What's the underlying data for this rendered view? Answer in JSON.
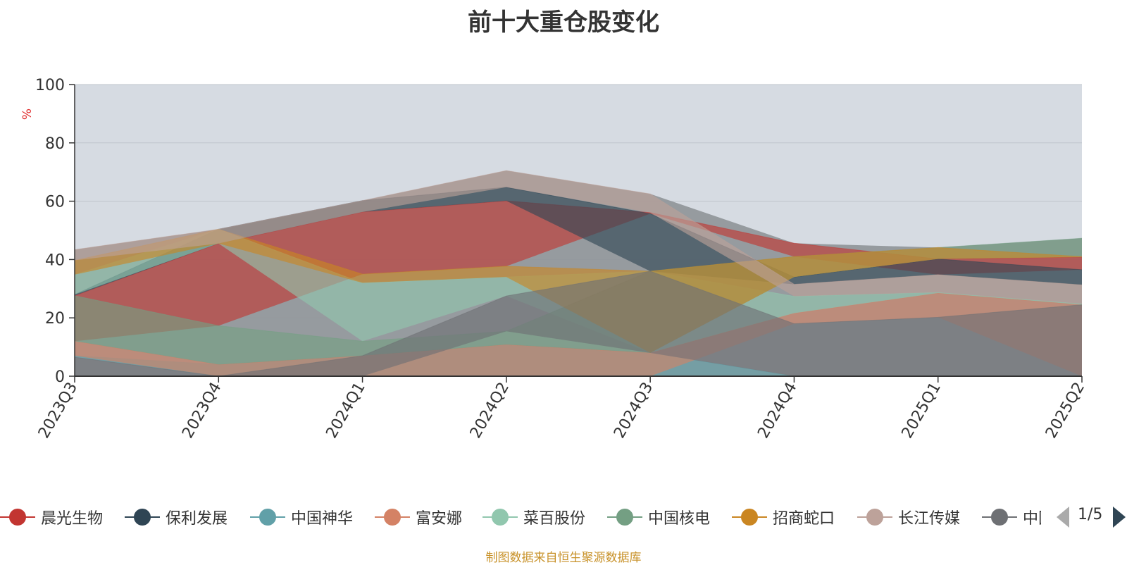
{
  "chart_data": {
    "type": "area",
    "title": "前十大重仓股变化",
    "ylabel": "%",
    "ylim": [
      0,
      100
    ],
    "yticks": [
      "0",
      "20",
      "40",
      "60",
      "80",
      "100"
    ],
    "categories": [
      "2023Q3",
      "2023Q4",
      "2024Q1",
      "2024Q2",
      "2024Q3",
      "2024Q4",
      "2025Q1",
      "2025Q2"
    ],
    "series": [
      {
        "name": "晨光生物",
        "color": "#c23531",
        "values": [
          27.6,
          45.5,
          56.3,
          60.1,
          56.1,
          45.6,
          40.2,
          40.8
        ]
      },
      {
        "name": "保利发展",
        "color": "#2f4554",
        "values": [
          28.0,
          50.4,
          60.2,
          64.8,
          55.7,
          34.0,
          40.2,
          36.5
        ]
      },
      {
        "name": "中国神华",
        "color": "#61a0a8",
        "values": [
          7.0,
          4.0,
          7.0,
          10.8,
          8.0,
          0,
          0,
          0
        ]
      },
      {
        "name": "富安娜",
        "color": "#d48265",
        "values": [
          12.0,
          4.0,
          7.0,
          10.8,
          8.0,
          21.6,
          28.5,
          24.5
        ]
      },
      {
        "name": "菜百股份",
        "color": "#91c7ae",
        "values": [
          34.8,
          50.4,
          32.0,
          34.0,
          36.0,
          27.4,
          28.7,
          24.8
        ]
      },
      {
        "name": "中国核电",
        "color": "#749f83",
        "values": [
          27.6,
          17.3,
          12.0,
          15.4,
          36.0,
          41.0,
          44.1,
          47.3
        ]
      },
      {
        "name": "招商蛇口",
        "color": "#ca8622",
        "values": [
          39.7,
          50.4,
          35.0,
          37.7,
          36.0,
          41.0,
          44.1,
          41.0
        ]
      },
      {
        "name": "长江传媒",
        "color": "#bda29a",
        "values": [
          43.4,
          50.4,
          60.2,
          70.5,
          62.5,
          31.5,
          34.8,
          31.3
        ]
      },
      {
        "name": "中国平安",
        "color": "#6e7074",
        "values": [
          6.5,
          0,
          7.0,
          27.5,
          36.0,
          18.0,
          20.2,
          24.5
        ]
      }
    ],
    "legend_position": "bottom",
    "grid": true
  },
  "legend": {
    "items": [
      {
        "label": "晨光生物",
        "color": "#c23531"
      },
      {
        "label": "保利发展",
        "color": "#2f4554"
      },
      {
        "label": "中国神华",
        "color": "#61a0a8"
      },
      {
        "label": "富安娜",
        "color": "#d48265"
      },
      {
        "label": "菜百股份",
        "color": "#91c7ae"
      },
      {
        "label": "中国核电",
        "color": "#749f83"
      },
      {
        "label": "招商蛇口",
        "color": "#ca8622"
      },
      {
        "label": "长江传媒",
        "color": "#bda29a"
      },
      {
        "label": "中国平安",
        "color": "#6e7074"
      }
    ],
    "page": "1/5"
  },
  "source": "制图数据来自恒生聚源数据库"
}
